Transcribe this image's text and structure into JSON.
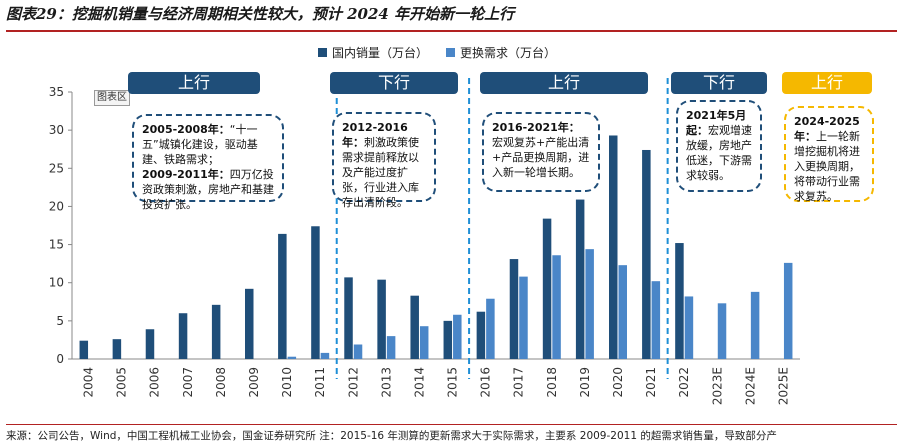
{
  "header": {
    "title": "图表29：挖掘机销量与经济周期相关性较大，预计 2024 年开始新一轮上行"
  },
  "footer": {
    "source": "来源：公司公告，Wind，中国工程机械工业协会，国金证券研究所   注：2015-16 年测算的更新需求大于实际需求，主要系 2009-2011 的超需求销售量，导致部分产"
  },
  "chart_area_label": "图表区",
  "chart_data": {
    "type": "bar",
    "categories": [
      "2004",
      "2005",
      "2006",
      "2007",
      "2008",
      "2009",
      "2010",
      "2011",
      "2012",
      "2013",
      "2014",
      "2015",
      "2016",
      "2017",
      "2018",
      "2019",
      "2020",
      "2021",
      "2022",
      "2023E",
      "2024E",
      "2025E"
    ],
    "series": [
      {
        "name": "国内销量（万台）",
        "color": "#1f4e79",
        "values": [
          2.4,
          2.6,
          3.9,
          6.0,
          7.1,
          9.2,
          16.4,
          17.4,
          10.7,
          10.4,
          8.3,
          5.0,
          6.2,
          13.1,
          18.4,
          20.9,
          29.3,
          27.4,
          15.2,
          null,
          null,
          null
        ]
      },
      {
        "name": "更换需求（万台）",
        "color": "#4a86c8",
        "values": [
          null,
          null,
          null,
          null,
          null,
          null,
          0.3,
          0.8,
          1.9,
          3.0,
          4.3,
          5.8,
          7.9,
          10.8,
          13.6,
          14.4,
          12.3,
          10.2,
          8.2,
          7.3,
          8.8,
          12.6
        ]
      }
    ],
    "ylim": [
      0,
      35
    ],
    "yticks": [
      0,
      5,
      10,
      15,
      20,
      25,
      30,
      35
    ],
    "xlabel": "",
    "ylabel": "",
    "grid": false,
    "legend": "top",
    "phases": [
      {
        "label": "上行",
        "color": "#1f4e79"
      },
      {
        "label": "下行",
        "color": "#1f4e79"
      },
      {
        "label": "上行",
        "color": "#1f4e79"
      },
      {
        "label": "下行",
        "color": "#1f4e79"
      },
      {
        "label": "上行",
        "color": "#f5b800"
      }
    ],
    "annotations": [
      {
        "lines": [
          {
            "bold": "2005-2008年：",
            "text": "“十一五”城镇化建设，驱动基建、铁路需求；"
          },
          {
            "bold": "2009-2011年：",
            "text": "四万亿投资政策刺激，房地产和基建投资扩张。"
          }
        ]
      },
      {
        "lines": [
          {
            "bold": "2012-2016年：",
            "text": "刺激政策使需求提前释放以及产能过度扩张，行业进入库存出清阶段。"
          }
        ]
      },
      {
        "lines": [
          {
            "bold": "2016-2021年：",
            "text": "宏观复苏+产能出清+产品更换周期，进入新一轮增长期。"
          }
        ]
      },
      {
        "lines": [
          {
            "bold": "2021年5月起：",
            "text": "宏观增速放缓，房地产低迷，下游需求较弱。"
          }
        ]
      },
      {
        "lines": [
          {
            "bold": "2024-2025年：",
            "text": "上一轮新增挖掘机将进入更换周期，将带动行业需求复苏。"
          }
        ]
      }
    ]
  }
}
